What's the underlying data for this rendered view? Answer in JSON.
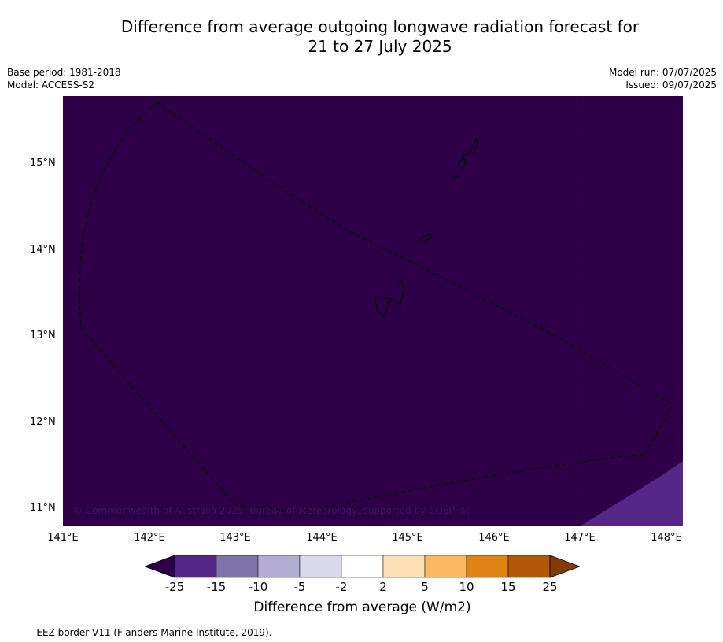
{
  "title": {
    "line1": "Difference from average outgoing longwave radiation forecast for",
    "line2": "21 to 27 July 2025"
  },
  "meta": {
    "base_period": "Base period: 1981-2018",
    "model": "Model: ACCESS-S2",
    "model_run": "Model run: 07/07/2025",
    "issued": "Issued: 09/07/2025"
  },
  "map": {
    "copyright": "© Commonwealth of Australia 2025, Bureau of Meteorology, supported by COSPPac",
    "background_color": "#2d0047",
    "anomaly_patch_color": "#542788",
    "lat_labels": [
      "15°N",
      "14°N",
      "13°N",
      "12°N",
      "11°N"
    ],
    "lon_labels": [
      "141°E",
      "142°E",
      "143°E",
      "144°E",
      "145°E",
      "146°E",
      "147°E",
      "148°E"
    ]
  },
  "colorbar": {
    "label": "Difference from average (W/m2)",
    "tick_labels": [
      "-25",
      "-15",
      "-10",
      "-5",
      "-2",
      "2",
      "5",
      "10",
      "15",
      "25"
    ],
    "colors": [
      "#2d0047",
      "#542788",
      "#8073ac",
      "#b2abd2",
      "#d8daeb",
      "#ffffff",
      "#fee0b6",
      "#fdb863",
      "#e08214",
      "#b35806",
      "#7f3b08"
    ]
  },
  "footnote": "--  --  -- EEZ border V11 (Flanders Marine Institute, 2019)."
}
